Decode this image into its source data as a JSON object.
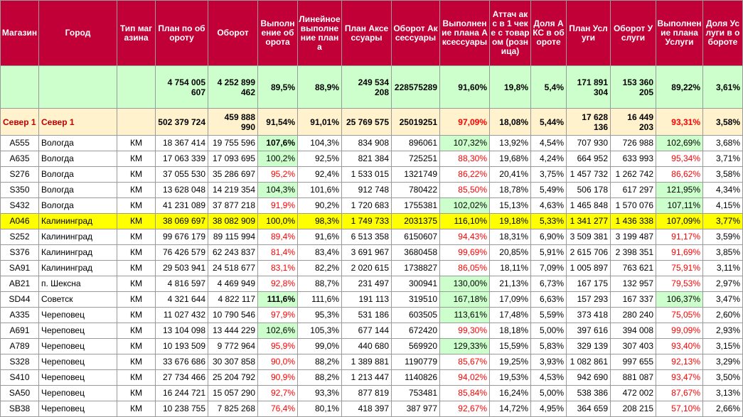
{
  "headers": [
    "Магазин",
    "Город",
    "Тип магазина",
    "План по обороту",
    "Оборот",
    "Выполнение оборота",
    "Линейное выполнение плана",
    "План Аксессуары",
    "Оборот Аксессуары",
    "Выполнение плана Аксессуары",
    "Аттач акс в 1 чеке с товаром (розница)",
    "Доля АКС в обороте",
    "План Услуги",
    "Оборот Услуги",
    "Выполнение плана Услуги",
    "Доля Услуги в обороте"
  ],
  "total": [
    "",
    "",
    "",
    "4 754 005 607",
    "4 252 899 462",
    "89,5%",
    "88,9%",
    "249 534 208",
    "228575289",
    "91,60%",
    "19,8%",
    "5,4%",
    "171 891 304",
    "153 360 205",
    "89,22%",
    "3,61%"
  ],
  "region": [
    "Север 1",
    "Север 1",
    "",
    "502 379 724",
    "459 888 990",
    "91,54%",
    "91,01%",
    "25 769 575",
    "25019251",
    "97,09%",
    "18,08%",
    "5,44%",
    "17 628 136",
    "16 449 203",
    "93,31%",
    "3,58%"
  ],
  "rows": [
    [
      "A555",
      "Вологда",
      "КМ",
      "18 367 414",
      "19 755 596",
      "107,6%",
      "104,3%",
      "834 908",
      "896061",
      "107,32%",
      "13,92%",
      "4,54%",
      "707 930",
      "726 988",
      "102,69%",
      "3,68%"
    ],
    [
      "A635",
      "Вологда",
      "КМ",
      "17 063 339",
      "17 093 695",
      "100,2%",
      "92,5%",
      "821 384",
      "725251",
      "88,30%",
      "19,68%",
      "4,24%",
      "664 952",
      "633 993",
      "95,34%",
      "3,71%"
    ],
    [
      "S276",
      "Вологда",
      "КМ",
      "37 055 530",
      "35 286 697",
      "95,2%",
      "92,4%",
      "1 533 015",
      "1321749",
      "86,22%",
      "20,41%",
      "3,75%",
      "1 457 732",
      "1 262 742",
      "86,62%",
      "3,58%"
    ],
    [
      "S350",
      "Вологда",
      "КМ",
      "13 628 048",
      "14 219 354",
      "104,3%",
      "101,6%",
      "912 748",
      "780422",
      "85,50%",
      "18,78%",
      "5,49%",
      "506 178",
      "617 297",
      "121,95%",
      "4,34%"
    ],
    [
      "S432",
      "Вологда",
      "КМ",
      "41 231 089",
      "37 877 218",
      "91,9%",
      "90,2%",
      "1 720 683",
      "1755381",
      "102,02%",
      "15,13%",
      "4,63%",
      "1 465 848",
      "1 570 076",
      "107,11%",
      "4,15%"
    ],
    [
      "A046",
      "Калининград",
      "КМ",
      "38 069 697",
      "38 082 909",
      "100,0%",
      "98,3%",
      "1 749 733",
      "2031375",
      "116,10%",
      "19,18%",
      "5,33%",
      "1 341 277",
      "1 436 338",
      "107,09%",
      "3,77%"
    ],
    [
      "S252",
      "Калининград",
      "КМ",
      "99 676 179",
      "89 115 994",
      "89,4%",
      "91,6%",
      "6 513 358",
      "6150607",
      "94,43%",
      "18,31%",
      "6,90%",
      "3 509 381",
      "3 199 487",
      "91,17%",
      "3,59%"
    ],
    [
      "S376",
      "Калининград",
      "КМ",
      "76 426 579",
      "62 243 837",
      "81,4%",
      "83,4%",
      "3 691 967",
      "3680458",
      "99,69%",
      "20,85%",
      "5,91%",
      "2 615 706",
      "2 398 351",
      "91,69%",
      "3,85%"
    ],
    [
      "SA91",
      "Калининград",
      "КМ",
      "29 503 941",
      "24 518 677",
      "83,1%",
      "82,2%",
      "2 020 615",
      "1738827",
      "86,05%",
      "18,11%",
      "7,09%",
      "1 005 897",
      "763 621",
      "75,91%",
      "3,11%"
    ],
    [
      "AB21",
      "п. Шексна",
      "КМ",
      "4 816 597",
      "4 469 949",
      "92,8%",
      "88,7%",
      "231 497",
      "300941",
      "130,00%",
      "21,13%",
      "6,73%",
      "167 175",
      "132 957",
      "79,53%",
      "2,97%"
    ],
    [
      "SD44",
      "Советск",
      "КМ",
      "4 321 644",
      "4 822 117",
      "111,6%",
      "111,6%",
      "191 113",
      "319510",
      "167,18%",
      "17,09%",
      "6,63%",
      "157 293",
      "167 337",
      "106,37%",
      "3,47%"
    ],
    [
      "A335",
      "Череповец",
      "КМ",
      "11 027 432",
      "10 790 546",
      "97,9%",
      "95,3%",
      "531 186",
      "603505",
      "113,61%",
      "17,48%",
      "5,59%",
      "373 418",
      "280 240",
      "75,05%",
      "2,60%"
    ],
    [
      "A691",
      "Череповец",
      "КМ",
      "13 104 098",
      "13 444 229",
      "102,6%",
      "105,3%",
      "677 144",
      "672420",
      "99,30%",
      "18,18%",
      "5,00%",
      "397 616",
      "394 008",
      "99,09%",
      "2,93%"
    ],
    [
      "A789",
      "Череповец",
      "КМ",
      "10 193 509",
      "9 772 964",
      "95,9%",
      "99,0%",
      "440 680",
      "569920",
      "129,33%",
      "15,59%",
      "5,83%",
      "329 139",
      "307 403",
      "93,40%",
      "3,15%"
    ],
    [
      "S328",
      "Череповец",
      "КМ",
      "33 676 686",
      "30 307 858",
      "90,0%",
      "88,2%",
      "1 389 881",
      "1190779",
      "85,67%",
      "19,25%",
      "3,93%",
      "1 082 861",
      "997 655",
      "92,13%",
      "3,29%"
    ],
    [
      "S410",
      "Череповец",
      "КМ",
      "27 734 466",
      "25 204 792",
      "90,9%",
      "88,2%",
      "1 213 447",
      "1140826",
      "94,02%",
      "19,53%",
      "4,53%",
      "942 690",
      "881 087",
      "93,47%",
      "3,50%"
    ],
    [
      "SA50",
      "Череповец",
      "КМ",
      "16 244 721",
      "15 057 290",
      "92,7%",
      "93,3%",
      "877 819",
      "753481",
      "85,84%",
      "16,24%",
      "5,00%",
      "538 386",
      "472 002",
      "87,67%",
      "3,13%"
    ],
    [
      "SB38",
      "Череповец",
      "КМ",
      "10 238 755",
      "7 825 268",
      "76,4%",
      "80,1%",
      "418 397",
      "387 977",
      "92,67%",
      "14,72%",
      "4,95%",
      "364 659",
      "208 215",
      "57,10%",
      "2,66%"
    ]
  ],
  "colors": {
    "header_bg": "#c00037",
    "total_bg": "#ccffcc",
    "region_bg": "#fff2cc",
    "highlight_bg": "#ffff00",
    "red_text": "#ff0000"
  }
}
